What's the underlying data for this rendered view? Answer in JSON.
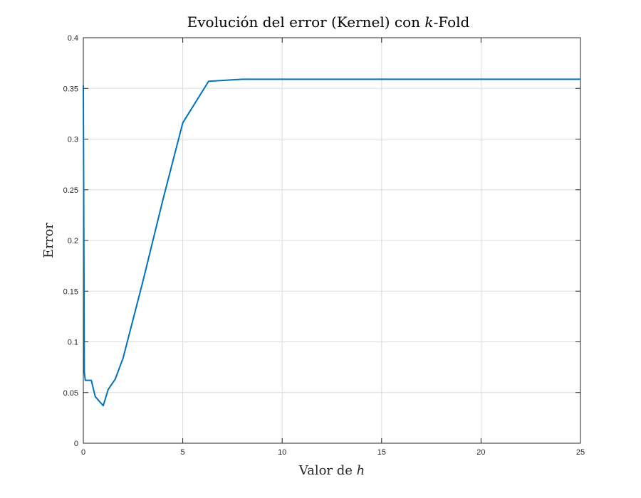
{
  "chart_data": {
    "type": "line",
    "title_plain": "Evolución del error (Kernel) con ",
    "title_italic": "k",
    "title_suffix": "-Fold",
    "xlabel_plain": "Valor de ",
    "xlabel_italic": "h",
    "ylabel": "Error",
    "xlim": [
      0,
      25
    ],
    "ylim": [
      0,
      0.4
    ],
    "xticks": [
      0,
      5,
      10,
      15,
      20,
      25
    ],
    "xtick_labels": [
      "0",
      "5",
      "10",
      "15",
      "20",
      "25"
    ],
    "yticks": [
      0,
      0.05,
      0.1,
      0.15,
      0.2,
      0.25,
      0.3,
      0.35,
      0.4
    ],
    "ytick_labels": [
      "0",
      "0.05",
      "0.1",
      "0.15",
      "0.2",
      "0.25",
      "0.3",
      "0.35",
      "0.4"
    ],
    "grid": true,
    "series": [
      {
        "color": "#0072bd",
        "x": [
          0.0,
          0.05,
          0.1,
          0.15,
          0.2,
          0.3,
          0.4,
          0.6,
          1.0,
          1.25,
          1.6,
          2.0,
          3.0,
          4.0,
          5.0,
          6.3,
          8.0,
          10.0,
          15.0,
          20.0,
          25.0
        ],
        "y": [
          0.353,
          0.07,
          0.062,
          0.062,
          0.062,
          0.062,
          0.062,
          0.046,
          0.037,
          0.053,
          0.063,
          0.084,
          0.16,
          0.24,
          0.316,
          0.357,
          0.359,
          0.359,
          0.359,
          0.359,
          0.359
        ]
      }
    ]
  }
}
